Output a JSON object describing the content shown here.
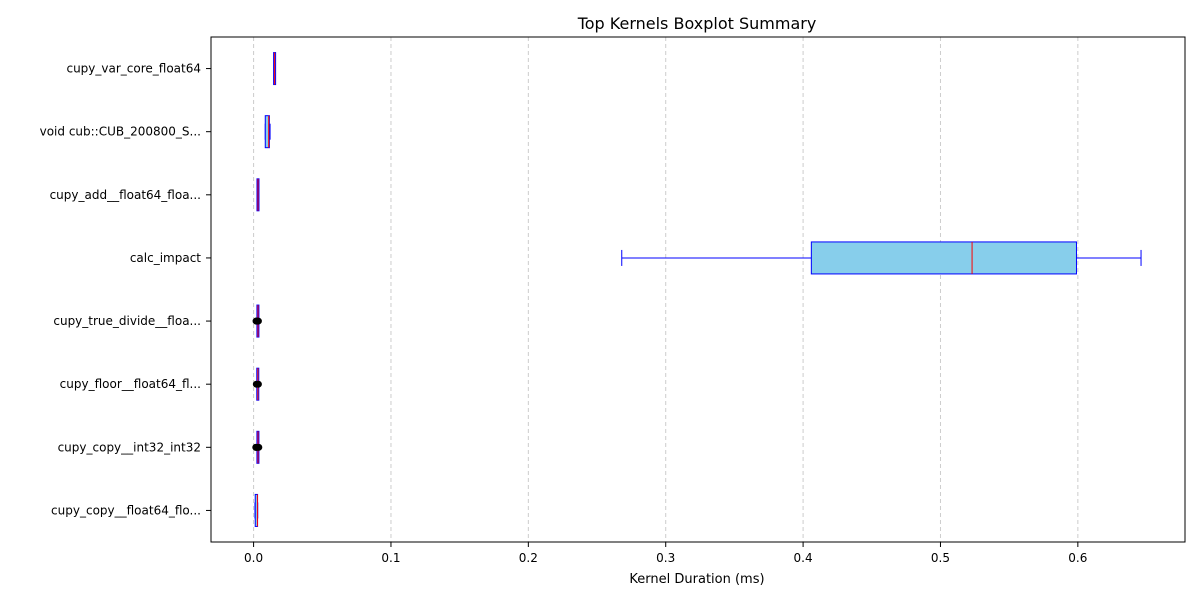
{
  "chart_data": {
    "type": "boxplot",
    "orientation": "horizontal",
    "title": "Top Kernels Boxplot Summary",
    "xlabel": "Kernel Duration (ms)",
    "ylabel": "",
    "xlim": [
      -0.031,
      0.678
    ],
    "xticks": [
      0.0,
      0.1,
      0.2,
      0.3,
      0.4,
      0.5,
      0.6
    ],
    "xtick_labels": [
      "0.0",
      "0.1",
      "0.2",
      "0.3",
      "0.4",
      "0.5",
      "0.6"
    ],
    "grid": "x-dashed",
    "categories": [
      "cupy_var_core_float64",
      "void cub::CUB_200800_S...",
      "cupy_add__float64_floa...",
      "calc_impact",
      "cupy_true_divide__floa...",
      "cupy_floor__float64_fl...",
      "cupy_copy__int32_int32",
      "cupy_copy__float64_flo..."
    ],
    "boxes": [
      {
        "whislo": 0.0151,
        "q1": 0.0152,
        "med": 0.0153,
        "q3": 0.0154,
        "whishi": 0.0155,
        "fliers": []
      },
      {
        "whislo": 0.0085,
        "q1": 0.0085,
        "med": 0.011,
        "q3": 0.0115,
        "whishi": 0.012,
        "fliers": []
      },
      {
        "whislo": 0.0031,
        "q1": 0.0031,
        "med": 0.0032,
        "q3": 0.0033,
        "whishi": 0.0033,
        "fliers": []
      },
      {
        "whislo": 0.268,
        "q1": 0.406,
        "med": 0.523,
        "q3": 0.599,
        "whishi": 0.646,
        "fliers": []
      },
      {
        "whislo": 0.0031,
        "q1": 0.0031,
        "med": 0.0032,
        "q3": 0.0032,
        "whishi": 0.0033,
        "fliers": [
          0.0018,
          0.0022,
          0.0028,
          0.0035
        ]
      },
      {
        "whislo": 0.003,
        "q1": 0.003,
        "med": 0.0031,
        "q3": 0.0031,
        "whishi": 0.0032,
        "fliers": [
          0.002,
          0.0035
        ]
      },
      {
        "whislo": 0.0031,
        "q1": 0.0031,
        "med": 0.0032,
        "q3": 0.0032,
        "whishi": 0.0033,
        "fliers": [
          0.0016,
          0.002,
          0.0025,
          0.0038
        ]
      },
      {
        "whislo": 0.001,
        "q1": 0.0012,
        "med": 0.0028,
        "q3": 0.0029,
        "whishi": 0.003,
        "fliers": []
      }
    ],
    "colors": {
      "box_fill": "#87ceeb",
      "box_edge": "#0000ff",
      "median": "#ff0000",
      "whisker": "#0000ff",
      "flier": "#000000",
      "grid": "#cccccc"
    }
  }
}
